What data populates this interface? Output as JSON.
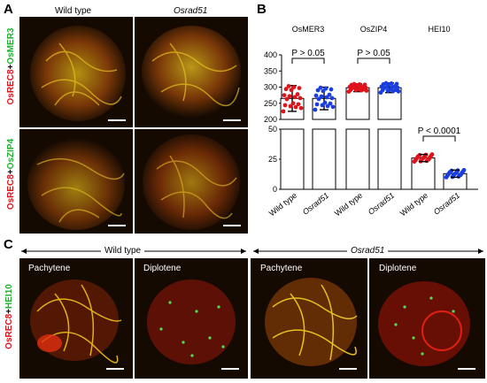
{
  "panels": {
    "A": {
      "letter": "A",
      "col_headers": [
        "Wild type",
        "Osrad51"
      ],
      "rows": [
        {
          "marker_a": "OsREC8",
          "plus": "+",
          "marker_b": "OsMER3"
        },
        {
          "marker_a": "OsREC8",
          "plus": "+",
          "marker_b": "OsZIP4"
        }
      ]
    },
    "B": {
      "letter": "B"
    },
    "C": {
      "letter": "C",
      "group_wt": "Wild type",
      "group_mut": "Osrad51",
      "stages": [
        "Pachytene",
        "Diplotene",
        "Pachytene",
        "Diplotene"
      ],
      "row_label": {
        "marker_a": "OsREC8",
        "plus": "+",
        "marker_b": "HEI10"
      }
    }
  },
  "colors": {
    "red": "#e0141c",
    "green": "#20b030",
    "blue": "#1a3ee0",
    "dark": "#150a02"
  },
  "chart_data": {
    "type": "bar",
    "groups": [
      "OsMER3",
      "OsZIP4",
      "HEI10"
    ],
    "categories": [
      "Wild type",
      "Osrad51",
      "Wild type",
      "Osrad51",
      "Wild type",
      "Osrad51"
    ],
    "values": [
      265,
      265,
      298,
      298,
      26,
      13
    ],
    "errors": [
      40,
      35,
      12,
      15,
      3,
      3
    ],
    "series_colors": [
      "#e0141c",
      "#1a3ee0",
      "#e0141c",
      "#1a3ee0",
      "#e0141c",
      "#1a3ee0"
    ],
    "annotations": [
      "P > 0.05",
      "P > 0.05",
      "P < 0.0001"
    ],
    "y_ticks_upper": [
      200,
      250,
      300,
      350,
      400
    ],
    "y_ticks_lower": [
      0,
      25,
      50
    ],
    "ylim_upper": [
      200,
      400
    ],
    "ylim_lower": [
      0,
      50
    ],
    "xlabel": "",
    "ylabel": ""
  }
}
